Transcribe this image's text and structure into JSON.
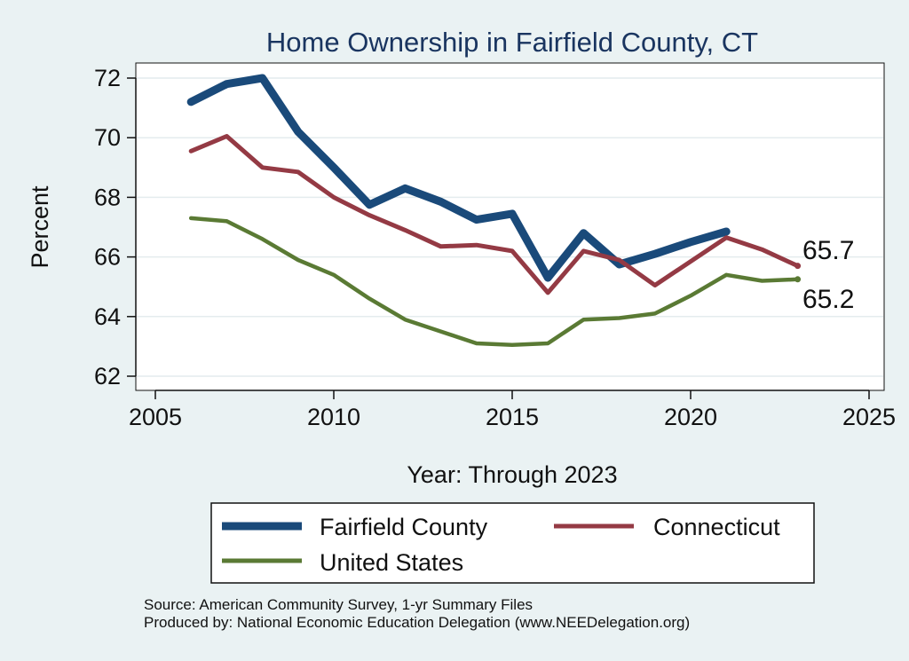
{
  "chart_data": {
    "type": "line",
    "title": "Home Ownership in Fairfield County, CT",
    "xlabel": "Year: Through 2023",
    "ylabel": "Percent",
    "xlim": [
      2005,
      2025
    ],
    "ylim": [
      62,
      72
    ],
    "xticks": [
      2005,
      2010,
      2015,
      2020,
      2025
    ],
    "yticks": [
      62,
      64,
      66,
      68,
      70,
      72
    ],
    "grid": true,
    "legend": "bottom",
    "series": [
      {
        "name": "Fairfield County",
        "color": "#1a4a7a",
        "x": [
          2006,
          2007,
          2008,
          2009,
          2010,
          2011,
          2012,
          2013,
          2014,
          2015,
          2016,
          2017,
          2018,
          2019,
          2020,
          2021
        ],
        "values": [
          71.2,
          71.8,
          72.0,
          70.2,
          69.0,
          67.75,
          68.3,
          67.85,
          67.25,
          67.45,
          65.3,
          66.8,
          65.75,
          66.1,
          66.5,
          66.85
        ]
      },
      {
        "name": "Connecticut",
        "color": "#943a44",
        "x": [
          2006,
          2007,
          2008,
          2009,
          2010,
          2011,
          2012,
          2013,
          2014,
          2015,
          2016,
          2017,
          2018,
          2019,
          2021,
          2022,
          2023
        ],
        "values": [
          69.55,
          70.05,
          69.0,
          68.85,
          68.0,
          67.4,
          66.9,
          66.35,
          66.4,
          66.2,
          64.8,
          66.2,
          65.9,
          65.05,
          66.65,
          66.25,
          65.7
        ]
      },
      {
        "name": "United States",
        "color": "#5a7a34",
        "x": [
          2006,
          2007,
          2008,
          2009,
          2010,
          2011,
          2012,
          2013,
          2014,
          2015,
          2016,
          2017,
          2018,
          2019,
          2020,
          2021,
          2022,
          2023
        ],
        "values": [
          67.3,
          67.2,
          66.6,
          65.9,
          65.4,
          64.6,
          63.9,
          63.5,
          63.1,
          63.05,
          63.1,
          63.9,
          63.95,
          64.1,
          64.7,
          65.4,
          65.2,
          65.25
        ]
      }
    ],
    "end_labels": [
      "65.7",
      "65.2"
    ],
    "source_lines": [
      "Source: American Community Survey, 1-yr Summary Files",
      "Produced by: National Economic Education Delegation (www.NEEDelegation.org)"
    ]
  }
}
